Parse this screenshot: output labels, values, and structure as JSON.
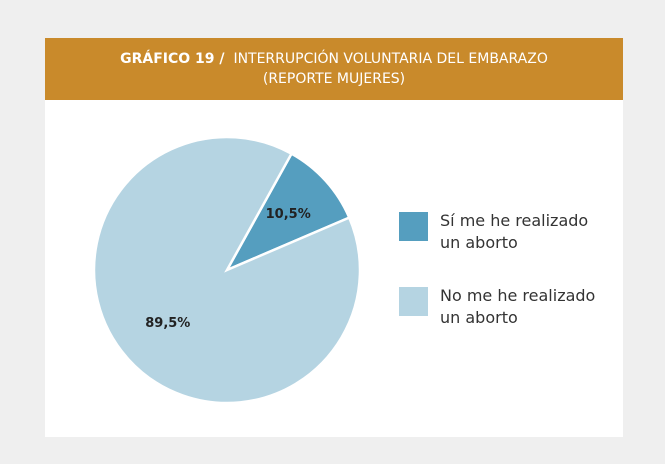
{
  "chart_data": {
    "type": "pie",
    "title_prefix": "GRÁFICO 19 /",
    "title": "INTERRUPCIÓN VOLUNTARIA DEL EMBARAZO (REPORTE MUJERES)",
    "categories": [
      "Sí me he realizado un aborto",
      "No me he realizado un aborto"
    ],
    "values": [
      10.5,
      89.5
    ],
    "value_labels": [
      "10,5%",
      "89,5%"
    ],
    "colors": [
      "#559ebf",
      "#b5d4e2"
    ]
  }
}
